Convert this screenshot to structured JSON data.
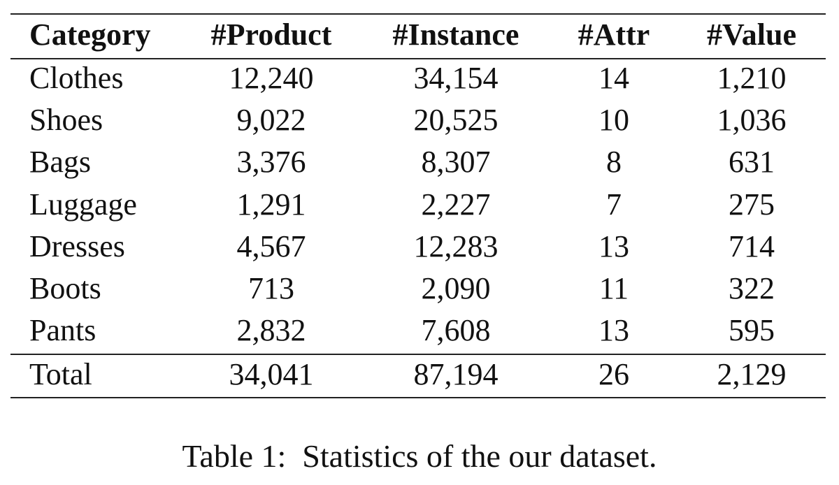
{
  "table": {
    "header": [
      "Category",
      "#Product",
      "#Instance",
      "#Attr",
      "#Value"
    ],
    "rows": [
      [
        "Clothes",
        "12,240",
        "34,154",
        "14",
        "1,210"
      ],
      [
        "Shoes",
        "9,022",
        "20,525",
        "10",
        "1,036"
      ],
      [
        "Bags",
        "3,376",
        "8,307",
        "8",
        "631"
      ],
      [
        "Luggage",
        "1,291",
        "2,227",
        "7",
        "275"
      ],
      [
        "Dresses",
        "4,567",
        "12,283",
        "13",
        "714"
      ],
      [
        "Boots",
        "713",
        "2,090",
        "11",
        "322"
      ],
      [
        "Pants",
        "2,832",
        "7,608",
        "13",
        "595"
      ]
    ],
    "total": [
      "Total",
      "34,041",
      "87,194",
      "26",
      "2,129"
    ]
  },
  "caption": "Table 1:  Statistics of the our dataset."
}
